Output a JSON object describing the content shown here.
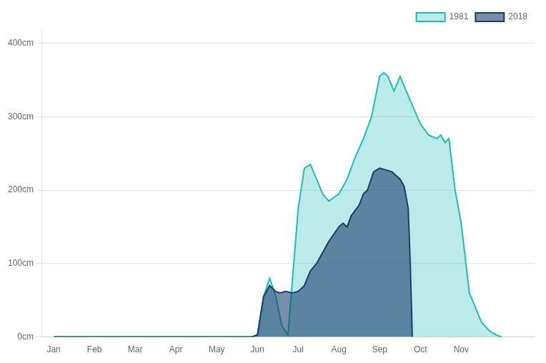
{
  "chart_data": {
    "type": "area",
    "series": [
      {
        "name": "1981",
        "color": "#1dbdb5",
        "x": [
          0,
          1,
          2,
          3,
          4,
          4.85,
          5.0,
          5.15,
          5.3,
          5.45,
          5.6,
          5.75,
          6.0,
          6.15,
          6.3,
          6.45,
          6.6,
          6.75,
          7.0,
          7.2,
          7.4,
          7.6,
          7.8,
          8.0,
          8.1,
          8.2,
          8.35,
          8.5,
          8.65,
          9.0,
          9.2,
          9.4,
          9.5,
          9.6,
          9.7,
          9.85,
          10.0,
          10.2,
          10.5,
          10.7,
          10.85,
          11.0
        ],
        "values": [
          0,
          0,
          0,
          0,
          0,
          0,
          2,
          55,
          80,
          55,
          15,
          3,
          175,
          230,
          235,
          215,
          195,
          185,
          195,
          215,
          245,
          270,
          300,
          355,
          360,
          355,
          335,
          355,
          335,
          290,
          275,
          270,
          275,
          265,
          270,
          200,
          155,
          60,
          20,
          8,
          3,
          0
        ]
      },
      {
        "name": "2018",
        "color": "#1a3f6f",
        "x": [
          0,
          1,
          2,
          3,
          4,
          4.85,
          5.0,
          5.15,
          5.3,
          5.45,
          5.55,
          5.7,
          5.85,
          6.0,
          6.15,
          6.3,
          6.45,
          6.6,
          6.75,
          7.0,
          7.1,
          7.2,
          7.3,
          7.5,
          7.6,
          7.7,
          7.85,
          8.0,
          8.3,
          8.5,
          8.6,
          8.7,
          8.75,
          8.8
        ],
        "values": [
          0,
          0,
          0,
          0,
          0,
          0,
          3,
          55,
          70,
          62,
          60,
          62,
          60,
          62,
          70,
          90,
          100,
          115,
          130,
          150,
          155,
          150,
          165,
          180,
          195,
          200,
          225,
          230,
          225,
          215,
          205,
          175,
          100,
          0
        ]
      }
    ],
    "xlim": [
      -0.3,
      11.8
    ],
    "xticks": [
      {
        "value": 0,
        "label": "Jan"
      },
      {
        "value": 1,
        "label": "Feb"
      },
      {
        "value": 2,
        "label": "Mar"
      },
      {
        "value": 3,
        "label": "Apr"
      },
      {
        "value": 4,
        "label": "May"
      },
      {
        "value": 5,
        "label": "Jun"
      },
      {
        "value": 6,
        "label": "Jul"
      },
      {
        "value": 7,
        "label": "Aug"
      },
      {
        "value": 8,
        "label": "Sep"
      },
      {
        "value": 9,
        "label": "Oct"
      },
      {
        "value": 10,
        "label": "Nov"
      }
    ],
    "ylim": [
      0,
      420
    ],
    "yticks": [
      {
        "value": 0,
        "label": "0cm"
      },
      {
        "value": 100,
        "label": "100cm"
      },
      {
        "value": 200,
        "label": "200cm"
      },
      {
        "value": 300,
        "label": "300cm"
      },
      {
        "value": 400,
        "label": "400cm"
      }
    ],
    "grid": "y",
    "legend": "upper right"
  }
}
